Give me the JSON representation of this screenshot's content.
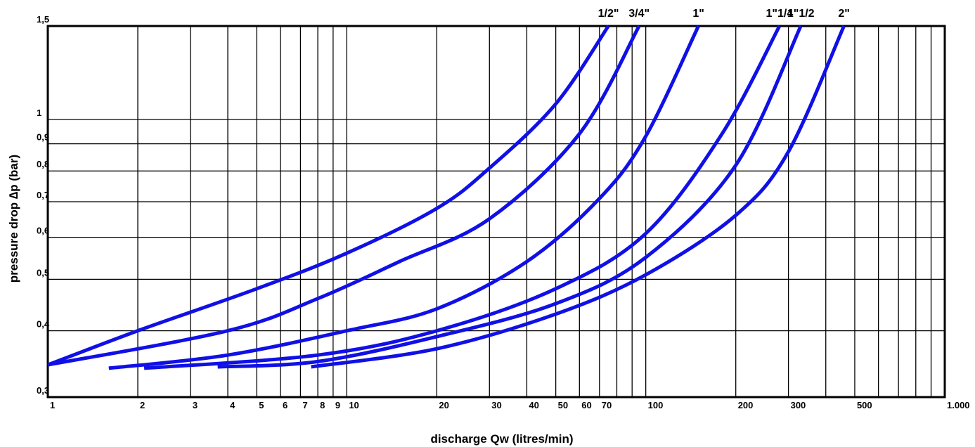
{
  "chart_data": {
    "type": "line",
    "x_scale": "log",
    "y_scale": "log",
    "xlim": [
      1,
      1000
    ],
    "ylim": [
      0.3,
      1.5
    ],
    "grid": true,
    "xlabel": "discharge Qw (litres/min)",
    "ylabel": "pressure drop ∆p (bar)",
    "color": "#1010e6",
    "x_ticks": [
      {
        "value": 1,
        "label": "1"
      },
      {
        "value": 2,
        "label": "2"
      },
      {
        "value": 3,
        "label": "3"
      },
      {
        "value": 4,
        "label": "4"
      },
      {
        "value": 5,
        "label": "5"
      },
      {
        "value": 6,
        "label": "6"
      },
      {
        "value": 7,
        "label": "7"
      },
      {
        "value": 8,
        "label": "8"
      },
      {
        "value": 9,
        "label": "9"
      },
      {
        "value": 10,
        "label": "10"
      },
      {
        "value": 20,
        "label": "20"
      },
      {
        "value": 30,
        "label": "30"
      },
      {
        "value": 40,
        "label": "40"
      },
      {
        "value": 50,
        "label": "50"
      },
      {
        "value": 60,
        "label": "60"
      },
      {
        "value": 70,
        "label": "70"
      },
      {
        "value": 80,
        "label": ""
      },
      {
        "value": 90,
        "label": ""
      },
      {
        "value": 100,
        "label": "100"
      },
      {
        "value": 200,
        "label": "200"
      },
      {
        "value": 300,
        "label": "300"
      },
      {
        "value": 400,
        "label": ""
      },
      {
        "value": 500,
        "label": "500"
      },
      {
        "value": 600,
        "label": ""
      },
      {
        "value": 700,
        "label": ""
      },
      {
        "value": 800,
        "label": ""
      },
      {
        "value": 900,
        "label": ""
      },
      {
        "value": 1000,
        "label": "1.000"
      }
    ],
    "y_ticks": [
      {
        "value": 0.3,
        "label": "0,3"
      },
      {
        "value": 0.4,
        "label": "0,4"
      },
      {
        "value": 0.5,
        "label": "0,5"
      },
      {
        "value": 0.6,
        "label": "0,6"
      },
      {
        "value": 0.7,
        "label": "0,7"
      },
      {
        "value": 0.8,
        "label": "0,8"
      },
      {
        "value": 0.9,
        "label": "0,9"
      },
      {
        "value": 1.0,
        "label": "1"
      },
      {
        "value": 1.5,
        "label": "1,5"
      }
    ],
    "series": [
      {
        "name": "1/2\"",
        "points": [
          [
            1,
            0.345
          ],
          [
            2,
            0.4
          ],
          [
            5,
            0.48
          ],
          [
            10,
            0.56
          ],
          [
            20,
            0.68
          ],
          [
            30,
            0.81
          ],
          [
            50,
            1.07
          ],
          [
            75,
            1.5
          ]
        ]
      },
      {
        "name": "3/4\"",
        "points": [
          [
            1,
            0.345
          ],
          [
            4,
            0.4
          ],
          [
            8,
            0.46
          ],
          [
            15,
            0.54
          ],
          [
            30,
            0.65
          ],
          [
            60,
            0.94
          ],
          [
            95,
            1.5
          ]
        ]
      },
      {
        "name": "1\"",
        "points": [
          [
            1.6,
            0.34
          ],
          [
            4,
            0.36
          ],
          [
            10,
            0.4
          ],
          [
            20,
            0.44
          ],
          [
            40,
            0.54
          ],
          [
            70,
            0.71
          ],
          [
            100,
            0.93
          ],
          [
            150,
            1.5
          ]
        ]
      },
      {
        "name": "1\"1/4",
        "points": [
          [
            2.1,
            0.34
          ],
          [
            8,
            0.36
          ],
          [
            20,
            0.4
          ],
          [
            50,
            0.48
          ],
          [
            100,
            0.61
          ],
          [
            180,
            0.94
          ],
          [
            280,
            1.5
          ]
        ]
      },
      {
        "name": "1\"1/2",
        "points": [
          [
            3.7,
            0.342
          ],
          [
            8,
            0.35
          ],
          [
            20,
            0.39
          ],
          [
            50,
            0.45
          ],
          [
            100,
            0.55
          ],
          [
            200,
            0.82
          ],
          [
            330,
            1.5
          ]
        ]
      },
      {
        "name": "2\"",
        "points": [
          [
            7.6,
            0.342
          ],
          [
            20,
            0.37
          ],
          [
            50,
            0.43
          ],
          [
            100,
            0.51
          ],
          [
            200,
            0.66
          ],
          [
            300,
            0.87
          ],
          [
            460,
            1.5
          ]
        ]
      }
    ]
  }
}
